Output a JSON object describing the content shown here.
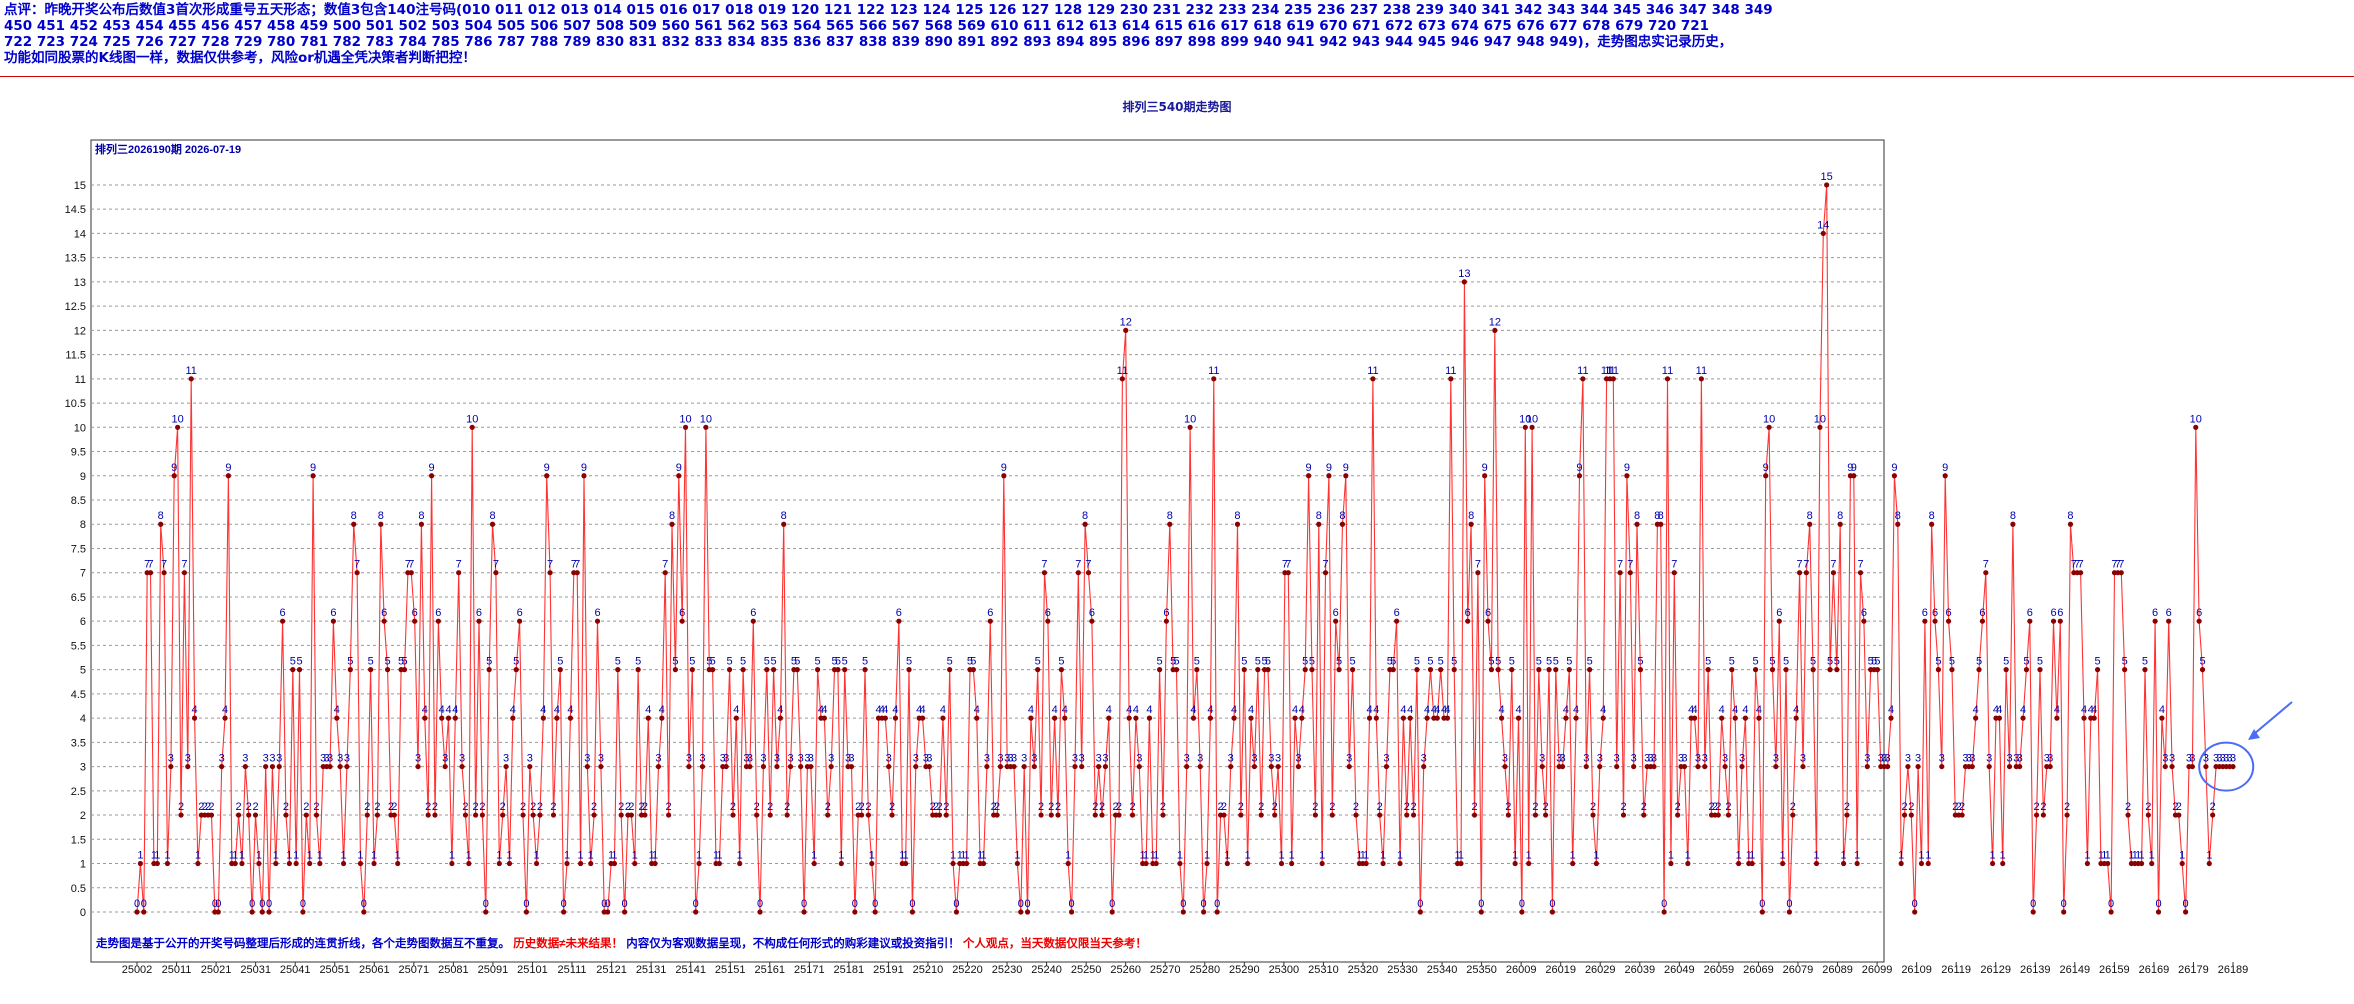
{
  "comment": {
    "lines": [
      "点评：昨晚开奖公布后数值3首次形成重号五天形态；数值3包含140注号码(010  011  012  013  014  015  016  017  018  019  120  121  122  123  124  125  126  127  128  129  230  231  232  233  234  235  236  237  238  239  340  341  342  343  344  345  346  347  348  349",
      "  450   451   452   453   454   455   456   457   458   459   500   501   502   503   504   505   506   507   508   509   560   561   562   563   564   565   566   567   568   569   610   611   612   613   614   615   616   617   618   619   670   671   672   673   674   675   676   677   678   679   720   721",
      "  722   723   724   725   726   727   728   729   780   781   782   783   784   785   786   787   788   789   830   831   832   833   834   835   836   837   838   839   890   891   892   893   894   895   896   897   898   899   940   941   942   943   944   945   946   947   948   949)，走势图忠实记录历史，",
      "功能如同股票的K线图一样，数据仅供参考，风险or机遇全凭决策者判断把控！"
    ]
  },
  "chart_data": {
    "type": "line",
    "title": "排列三540期走势图",
    "subtitle": "排列三2026190期  2026-07-19",
    "ylim": [
      0,
      15.5
    ],
    "yticks": [
      "0",
      "0.5",
      "1",
      "1.5",
      "2",
      "2.5",
      "3",
      "3.5",
      "4",
      "4.5",
      "5",
      "5.5",
      "6",
      "6.5",
      "7",
      "7.5",
      "8",
      "8.5",
      "9",
      "9.5",
      "10",
      "10.5",
      "11",
      "11.5",
      "12",
      "12.5",
      "13",
      "13.5",
      "14",
      "14.5",
      "15"
    ],
    "xticks": [
      "25002",
      "25011",
      "25021",
      "25031",
      "25041",
      "25051",
      "25061",
      "25071",
      "25081",
      "25091",
      "25101",
      "25111",
      "25121",
      "25131",
      "25141",
      "25151",
      "25161",
      "25171",
      "25181",
      "25191",
      "25210",
      "25220",
      "25230",
      "25240",
      "25250",
      "25260",
      "25270",
      "25280",
      "25290",
      "25300",
      "25310",
      "25320",
      "25330",
      "25340",
      "25350",
      "26009",
      "26019",
      "26029",
      "26039",
      "26049",
      "26059",
      "26069",
      "26079",
      "26089",
      "26099",
      "26109",
      "26119",
      "26129",
      "26139",
      "26149",
      "26159",
      "26169",
      "26179",
      "26189"
    ],
    "grid": true,
    "point_labels": true,
    "line_color": "#ff3333",
    "marker_color": "#8b0000",
    "label_color": "#0000aa",
    "highlight_color": "#4a6cf7",
    "values": [
      0,
      1,
      0,
      7,
      7,
      1,
      1,
      8,
      7,
      1,
      3,
      9,
      10,
      2,
      7,
      3,
      11,
      4,
      1,
      2,
      2,
      2,
      2,
      0,
      0,
      3,
      4,
      9,
      1,
      1,
      2,
      1,
      3,
      2,
      0,
      2,
      1,
      0,
      3,
      0,
      3,
      1,
      3,
      6,
      2,
      1,
      5,
      1,
      5,
      0,
      2,
      1,
      9,
      2,
      1,
      3,
      3,
      3,
      6,
      4,
      3,
      1,
      3,
      5,
      8,
      7,
      1,
      0,
      2,
      5,
      1,
      2,
      8,
      6,
      5,
      2,
      2,
      1,
      5,
      5,
      7,
      7,
      6,
      3,
      8,
      4,
      2,
      9,
      2,
      6,
      4,
      3,
      4,
      1,
      4,
      7,
      3,
      2,
      1,
      10,
      2,
      6,
      2,
      0,
      5,
      8,
      7,
      1,
      2,
      3,
      1,
      4,
      5,
      6,
      2,
      0,
      3,
      2,
      1,
      2,
      4,
      9,
      7,
      2,
      4,
      5,
      0,
      1,
      4,
      7,
      7,
      1,
      9,
      3,
      1,
      2,
      6,
      3,
      0,
      0,
      1,
      1,
      5,
      2,
      0,
      2,
      2,
      1,
      5,
      2,
      2,
      4,
      1,
      1,
      3,
      4,
      7,
      2,
      8,
      5,
      9,
      6,
      10,
      3,
      5,
      0,
      1,
      3,
      10,
      5,
      5,
      1,
      1,
      3,
      3,
      5,
      2,
      4,
      1,
      5,
      3,
      3,
      6,
      2,
      0,
      3,
      5,
      2,
      5,
      3,
      4,
      8,
      2,
      3,
      5,
      5,
      3,
      0,
      3,
      3,
      1,
      5,
      4,
      4,
      2,
      3,
      5,
      5,
      1,
      5,
      3,
      3,
      0,
      2,
      2,
      5,
      2,
      1,
      0,
      4,
      4,
      4,
      3,
      2,
      4,
      6,
      1,
      1,
      5,
      0,
      3,
      4,
      4,
      3,
      3,
      2,
      2,
      2,
      4,
      2,
      5,
      1,
      0,
      1,
      1,
      1,
      5,
      5,
      4,
      1,
      1,
      3,
      6,
      2,
      2,
      3,
      9,
      3,
      3,
      3,
      1,
      0,
      3,
      0,
      4,
      3,
      5,
      2,
      7,
      6,
      2,
      4,
      2,
      5,
      4,
      1,
      0,
      3,
      7,
      3,
      8,
      7,
      6,
      2,
      3,
      2,
      3,
      4,
      0,
      2,
      2,
      11,
      12,
      4,
      2,
      4,
      3,
      1,
      1,
      4,
      1,
      1,
      5,
      2,
      6,
      8,
      5,
      5,
      1,
      0,
      3,
      10,
      4,
      5,
      3,
      0,
      1,
      4,
      11,
      0,
      2,
      2,
      1,
      3,
      4,
      8,
      2,
      5,
      1,
      4,
      3,
      5,
      2,
      5,
      5,
      3,
      2,
      3,
      1,
      7,
      7,
      1,
      4,
      3,
      4,
      5,
      9,
      5,
      2,
      8,
      1,
      7,
      9,
      2,
      6,
      5,
      8,
      9,
      3,
      5,
      2,
      1,
      1,
      1,
      4,
      11,
      4,
      2,
      1,
      3,
      5,
      5,
      6,
      1,
      4,
      2,
      4,
      2,
      5,
      0,
      3,
      4,
      5,
      4,
      4,
      5,
      4,
      4,
      11,
      5,
      1,
      1,
      13,
      6,
      8,
      2,
      7,
      0,
      9,
      6,
      5,
      12,
      5,
      4,
      3,
      2,
      5,
      1,
      4,
      0,
      10,
      1,
      10,
      2,
      5,
      3,
      2,
      5,
      0,
      5,
      3,
      3,
      4,
      5,
      1,
      4,
      9,
      11,
      3,
      5,
      2,
      1,
      3,
      4,
      11,
      11,
      11,
      3,
      7,
      2,
      9,
      7,
      3,
      8,
      5,
      2,
      3,
      3,
      3,
      8,
      8,
      0,
      11,
      1,
      7,
      2,
      3,
      3,
      1,
      4,
      4,
      3,
      11,
      3,
      5,
      2,
      2,
      2,
      4,
      3,
      2,
      5,
      4,
      1,
      3,
      4,
      1,
      1,
      5,
      4,
      0,
      9,
      10,
      5,
      3,
      6,
      1,
      5,
      0,
      2,
      4,
      7,
      3,
      7,
      8,
      5,
      1,
      10,
      14,
      15,
      5,
      7,
      5,
      8,
      1,
      2,
      9,
      9,
      1,
      7,
      6,
      3,
      5,
      5,
      5,
      3,
      3,
      3,
      4,
      9,
      8,
      1,
      2,
      3,
      2,
      0,
      3,
      1,
      6,
      1,
      8,
      6,
      5,
      3,
      9,
      6,
      5,
      2,
      2,
      2,
      3,
      3,
      3,
      4,
      5,
      6,
      7,
      3,
      1,
      4,
      4,
      1,
      5,
      3,
      8,
      3,
      3,
      4,
      5,
      6,
      0,
      2,
      5,
      2,
      3,
      3,
      6,
      4,
      6,
      0,
      2,
      8,
      7,
      7,
      7,
      4,
      1,
      4,
      4,
      5,
      1,
      1,
      1,
      0,
      7,
      7,
      7,
      5,
      2,
      1,
      1,
      1,
      1,
      5,
      2,
      1,
      6,
      0,
      4,
      3,
      6,
      3,
      2,
      2,
      1,
      0,
      3,
      3,
      10,
      6,
      5,
      3,
      1,
      2,
      3,
      3,
      3,
      3,
      3,
      3
    ]
  },
  "footer": {
    "part1": "走势图是基于公开的开奖号码整理后形成的连贯折线，各个走势图数据互不重复。",
    "part2": "历史数据≠未来结果！",
    "part3": "内容仅为客观数据呈现，不构成任何形式的购彩建议或投资指引！",
    "part4": "个人观点，当天数据仅限当天参考！"
  }
}
